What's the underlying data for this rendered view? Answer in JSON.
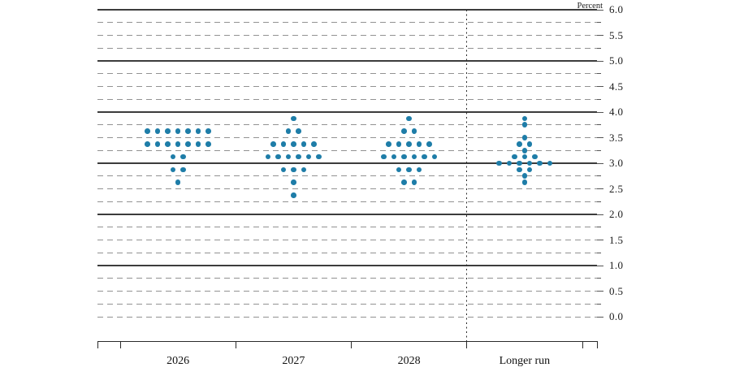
{
  "chart_data": {
    "type": "scatter",
    "variant": "fomc-dot-plot",
    "title": "",
    "unit_label": "Percent",
    "dot_color": "#1e7da8",
    "grid": "on",
    "y_axis": {
      "min": 0.0,
      "max": 6.0,
      "grid_step": 0.25,
      "solid_line_step": 1.0,
      "label_step": 0.5,
      "labels": [
        "6.0",
        "5.5",
        "5.0",
        "4.5",
        "4.0",
        "3.5",
        "3.0",
        "2.5",
        "2.0",
        "1.5",
        "1.0",
        "0.5",
        "0.0"
      ]
    },
    "categories": [
      "2026",
      "2027",
      "2028",
      "Longer run"
    ],
    "separator_before_category": "Longer run",
    "series": [
      {
        "category": "2026",
        "dots": [
          {
            "value": 3.625,
            "count": 7
          },
          {
            "value": 3.375,
            "count": 7
          },
          {
            "value": 3.125,
            "count": 2
          },
          {
            "value": 2.875,
            "count": 2
          },
          {
            "value": 2.625,
            "count": 1
          }
        ]
      },
      {
        "category": "2027",
        "dots": [
          {
            "value": 3.875,
            "count": 1
          },
          {
            "value": 3.625,
            "count": 2
          },
          {
            "value": 3.375,
            "count": 5
          },
          {
            "value": 3.125,
            "count": 6
          },
          {
            "value": 2.875,
            "count": 3
          },
          {
            "value": 2.625,
            "count": 1
          },
          {
            "value": 2.375,
            "count": 1
          }
        ]
      },
      {
        "category": "2028",
        "dots": [
          {
            "value": 3.875,
            "count": 1
          },
          {
            "value": 3.625,
            "count": 2
          },
          {
            "value": 3.375,
            "count": 5
          },
          {
            "value": 3.125,
            "count": 6
          },
          {
            "value": 2.875,
            "count": 3
          },
          {
            "value": 2.625,
            "count": 2
          }
        ]
      },
      {
        "category": "Longer run",
        "dots": [
          {
            "value": 3.875,
            "count": 1
          },
          {
            "value": 3.75,
            "count": 1
          },
          {
            "value": 3.5,
            "count": 1
          },
          {
            "value": 3.375,
            "count": 2
          },
          {
            "value": 3.25,
            "count": 1
          },
          {
            "value": 3.125,
            "count": 3
          },
          {
            "value": 3.0,
            "count": 6
          },
          {
            "value": 2.875,
            "count": 2
          },
          {
            "value": 2.75,
            "count": 1
          },
          {
            "value": 2.625,
            "count": 1
          }
        ]
      }
    ]
  }
}
